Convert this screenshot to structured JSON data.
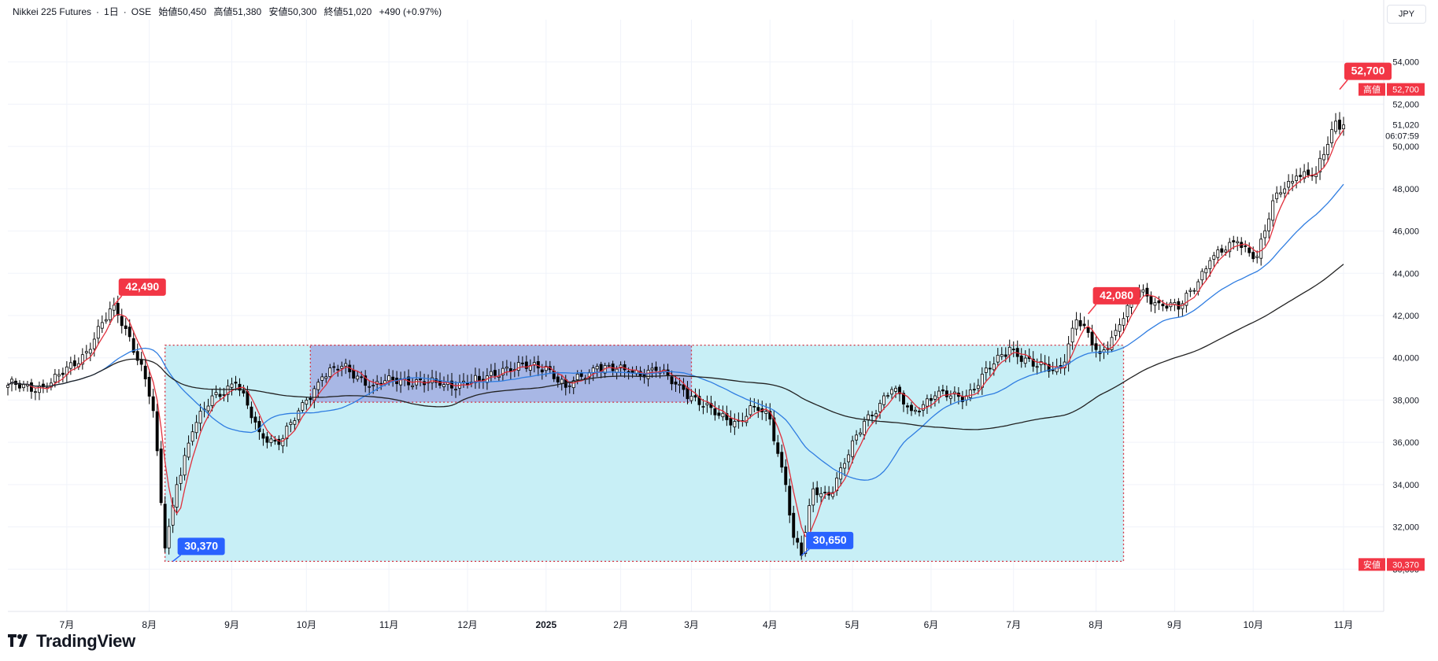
{
  "header": {
    "symbol": "Nikkei 225 Futures",
    "interval": "1日",
    "exchange": "OSE",
    "open": "始値50,450",
    "high": "高値51,380",
    "low": "安値50,300",
    "close": "終値51,020",
    "change": "+490 (+0.97%)"
  },
  "currency": "JPY",
  "price_axis": {
    "last_price": "51,020",
    "countdown": "06:07:59",
    "high_badge_label": "高値",
    "high_badge_value": "52,700",
    "low_badge_label": "安値",
    "low_badge_value": "30,370"
  },
  "callouts": [
    {
      "text": "42,490",
      "kind": "high"
    },
    {
      "text": "30,370",
      "kind": "low"
    },
    {
      "text": "30,650",
      "kind": "low"
    },
    {
      "text": "42,080",
      "kind": "high"
    },
    {
      "text": "52,700",
      "kind": "high"
    }
  ],
  "brand": "TradingView",
  "colors": {
    "up": "#ffffff",
    "down": "#000000",
    "ma_short": "#e0303c",
    "ma_mid": "#2f7de1",
    "ma_long": "#222222",
    "range_fill": "#c5eef5",
    "range_inner": "#a7b3e4",
    "callout_high": "#f23645",
    "callout_low": "#2962ff"
  },
  "chart_data": {
    "type": "candlestick",
    "ylim": [
      28000,
      56000
    ],
    "yticks": [
      "30,000",
      "32,000",
      "34,000",
      "36,000",
      "38,000",
      "40,000",
      "42,000",
      "44,000",
      "46,000",
      "48,000",
      "50,000",
      "52,000",
      "54,000"
    ],
    "xticks": [
      "7月",
      "8月",
      "9月",
      "10月",
      "11月",
      "12月",
      "2025",
      "2月",
      "3月",
      "4月",
      "5月",
      "6月",
      "7月",
      "8月",
      "9月",
      "10月",
      "11月"
    ],
    "xtick_index": [
      15,
      36,
      57,
      76,
      97,
      117,
      137,
      156,
      174,
      194,
      215,
      235,
      256,
      277,
      297,
      317,
      340
    ],
    "n_days": 341,
    "close_anchors": [
      [
        0,
        38700
      ],
      [
        10,
        38600
      ],
      [
        20,
        40300
      ],
      [
        27,
        42490
      ],
      [
        31,
        41000
      ],
      [
        35,
        39000
      ],
      [
        37,
        37500
      ],
      [
        40,
        31000
      ],
      [
        43,
        34000
      ],
      [
        47,
        36500
      ],
      [
        52,
        38200
      ],
      [
        58,
        38800
      ],
      [
        64,
        36500
      ],
      [
        69,
        35900
      ],
      [
        76,
        38000
      ],
      [
        80,
        39100
      ],
      [
        85,
        39600
      ],
      [
        93,
        38700
      ],
      [
        100,
        39000
      ],
      [
        110,
        38700
      ],
      [
        120,
        38900
      ],
      [
        126,
        39500
      ],
      [
        137,
        39600
      ],
      [
        142,
        38600
      ],
      [
        150,
        39600
      ],
      [
        158,
        39300
      ],
      [
        165,
        39400
      ],
      [
        172,
        38500
      ],
      [
        180,
        37300
      ],
      [
        186,
        37000
      ],
      [
        190,
        37700
      ],
      [
        194,
        37100
      ],
      [
        198,
        34000
      ],
      [
        200,
        31500
      ],
      [
        202,
        30650
      ],
      [
        205,
        33800
      ],
      [
        209,
        33500
      ],
      [
        213,
        35000
      ],
      [
        218,
        37000
      ],
      [
        225,
        38500
      ],
      [
        230,
        37500
      ],
      [
        236,
        38200
      ],
      [
        244,
        38200
      ],
      [
        250,
        39500
      ],
      [
        255,
        40500
      ],
      [
        261,
        39600
      ],
      [
        268,
        39500
      ],
      [
        272,
        41800
      ],
      [
        278,
        40200
      ],
      [
        282,
        41300
      ],
      [
        288,
        43200
      ],
      [
        293,
        42600
      ],
      [
        298,
        42300
      ],
      [
        306,
        44600
      ],
      [
        313,
        45500
      ],
      [
        318,
        44800
      ],
      [
        323,
        47800
      ],
      [
        328,
        48600
      ],
      [
        333,
        48700
      ],
      [
        338,
        51200
      ],
      [
        340,
        51020
      ]
    ],
    "range_box": {
      "start_day": 40,
      "end_day": 284,
      "low": 30370,
      "high": 40600
    },
    "inner_box": {
      "start_day": 77,
      "end_day": 174,
      "low": 37900,
      "high": 40600
    },
    "annotations": [
      {
        "day": 27,
        "price": 42490,
        "label": "42,490",
        "kind": "high"
      },
      {
        "day": 42,
        "price": 30370,
        "label": "30,370",
        "kind": "low"
      },
      {
        "day": 202,
        "price": 30650,
        "label": "30,650",
        "kind": "low"
      },
      {
        "day": 275,
        "price": 42080,
        "label": "42,080",
        "kind": "high"
      },
      {
        "day": 339,
        "price": 52700,
        "label": "52,700",
        "kind": "high"
      }
    ]
  }
}
